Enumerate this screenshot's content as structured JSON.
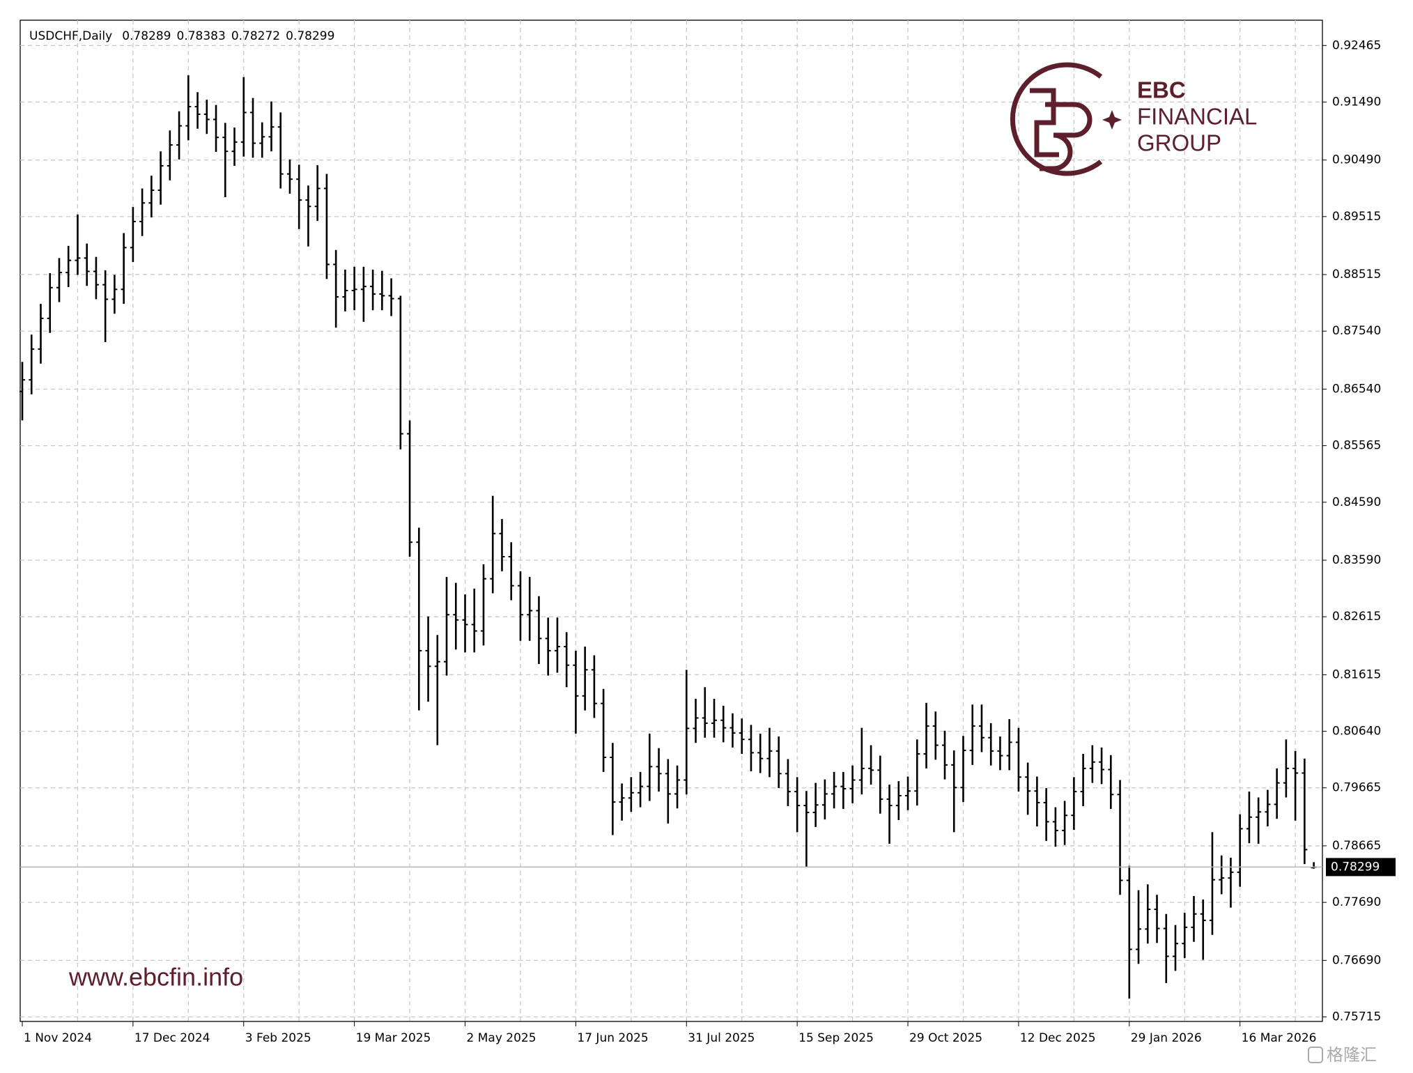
{
  "chart_data": {
    "type": "ohlc",
    "title": "USDCHF,Daily",
    "color": "#000000",
    "grid": true,
    "logo": [
      "EBC",
      "FINANCIAL",
      "GROUP"
    ],
    "website": "www.ebcfin.info",
    "watermark": "格隆汇",
    "categories": [
      "1 Nov 2024",
      null,
      null,
      null,
      null,
      null,
      null,
      null,
      null,
      null,
      null,
      null,
      "17 Dec 2024",
      null,
      null,
      null,
      null,
      null,
      null,
      null,
      null,
      null,
      null,
      null,
      "3 Feb 2025",
      null,
      null,
      null,
      null,
      null,
      null,
      null,
      null,
      null,
      null,
      null,
      "19 Mar 2025",
      null,
      null,
      null,
      null,
      null,
      null,
      null,
      null,
      null,
      null,
      null,
      "2 May 2025",
      null,
      null,
      null,
      null,
      null,
      null,
      null,
      null,
      null,
      null,
      null,
      "17 Jun 2025",
      null,
      null,
      null,
      null,
      null,
      null,
      null,
      null,
      null,
      null,
      null,
      "31 Jul 2025",
      null,
      null,
      null,
      null,
      null,
      null,
      null,
      null,
      null,
      null,
      null,
      "15 Sep 2025",
      null,
      null,
      null,
      null,
      null,
      null,
      null,
      null,
      null,
      null,
      null,
      "29 Oct 2025",
      null,
      null,
      null,
      null,
      null,
      null,
      null,
      null,
      null,
      null,
      null,
      "12 Dec 2025",
      null,
      null,
      null,
      null,
      null,
      null,
      null,
      null,
      null,
      null,
      null,
      "29 Jan 2026",
      null,
      null,
      null,
      null,
      null,
      null,
      null,
      null,
      null,
      null,
      null,
      "16 Mar 2026",
      null,
      null,
      null,
      null,
      null,
      null,
      null,
      null
    ],
    "open": [
      0.865,
      0.867,
      0.8723,
      0.8776,
      0.8829,
      0.8855,
      0.8876,
      0.888,
      0.8857,
      0.8834,
      0.8809,
      0.8826,
      0.8898,
      0.8943,
      0.8975,
      0.8997,
      0.9039,
      0.9075,
      0.9108,
      0.9141,
      0.9128,
      0.9119,
      0.9088,
      0.9064,
      0.908,
      0.9131,
      0.9078,
      0.9089,
      0.9106,
      0.9025,
      0.9016,
      0.898,
      0.8969,
      0.9,
      0.8869,
      0.8813,
      0.8824,
      0.8826,
      0.8831,
      0.8818,
      0.8815,
      0.881,
      0.8577,
      0.839,
      0.8203,
      0.8176,
      0.8184,
      0.8265,
      0.8256,
      0.8248,
      0.8237,
      0.8327,
      0.8405,
      0.8365,
      0.8315,
      0.8265,
      0.8272,
      0.8224,
      0.8203,
      0.821,
      0.8178,
      0.8125,
      0.817,
      0.8112,
      0.8019,
      0.7942,
      0.7949,
      0.7958,
      0.7969,
      0.8003,
      0.7991,
      0.7956,
      0.798,
      0.8069,
      0.8087,
      0.8078,
      0.8083,
      0.807,
      0.8061,
      0.805,
      0.8027,
      0.8017,
      0.803,
      0.7991,
      0.796,
      0.7936,
      0.7924,
      0.7937,
      0.7956,
      0.7969,
      0.7965,
      0.798,
      0.8,
      0.7997,
      0.7947,
      0.7936,
      0.7953,
      0.7961,
      0.8025,
      0.8073,
      0.804,
      0.8006,
      0.7967,
      0.8031,
      0.8073,
      0.8053,
      0.803,
      0.8022,
      0.8045,
      0.7985,
      0.7961,
      0.7941,
      0.7908,
      0.7893,
      0.7919,
      0.796,
      0.8,
      0.8011,
      0.7998,
      0.7955,
      0.7807,
      0.7688,
      0.7723,
      0.7757,
      0.7724,
      0.7676,
      0.7698,
      0.7726,
      0.7749,
      0.7738,
      0.7808,
      0.7811,
      0.7821,
      0.7896,
      0.7916,
      0.7925,
      0.7938,
      0.7975,
      0.8,
      0.7992,
      0.78289
    ],
    "high": [
      0.8701,
      0.8748,
      0.8801,
      0.8854,
      0.888,
      0.8901,
      0.8955,
      0.8905,
      0.8882,
      0.8859,
      0.8851,
      0.8923,
      0.8968,
      0.9,
      0.9022,
      0.9064,
      0.91,
      0.9133,
      0.9195,
      0.9166,
      0.9153,
      0.9144,
      0.9113,
      0.9105,
      0.9192,
      0.9156,
      0.9114,
      0.915,
      0.9131,
      0.905,
      0.9041,
      0.9005,
      0.904,
      0.9025,
      0.8894,
      0.886,
      0.8865,
      0.8865,
      0.886,
      0.8858,
      0.8845,
      0.8815,
      0.86,
      0.8415,
      0.8262,
      0.823,
      0.833,
      0.832,
      0.83,
      0.831,
      0.8352,
      0.847,
      0.843,
      0.839,
      0.834,
      0.833,
      0.8297,
      0.826,
      0.826,
      0.8235,
      0.8203,
      0.821,
      0.8195,
      0.8137,
      0.8044,
      0.7974,
      0.7985,
      0.7994,
      0.806,
      0.8035,
      0.8016,
      0.8005,
      0.817,
      0.812,
      0.814,
      0.812,
      0.8108,
      0.8095,
      0.8086,
      0.8075,
      0.806,
      0.807,
      0.8055,
      0.8016,
      0.7985,
      0.7961,
      0.7975,
      0.7981,
      0.7994,
      0.7994,
      0.8005,
      0.807,
      0.804,
      0.8022,
      0.7972,
      0.7978,
      0.7986,
      0.805,
      0.8113,
      0.8098,
      0.8065,
      0.8031,
      0.8056,
      0.811,
      0.811,
      0.8078,
      0.8055,
      0.8085,
      0.807,
      0.801,
      0.7986,
      0.7966,
      0.7933,
      0.7944,
      0.7985,
      0.8025,
      0.804,
      0.8036,
      0.8023,
      0.798,
      0.7832,
      0.779,
      0.78,
      0.7782,
      0.7749,
      0.773,
      0.7751,
      0.778,
      0.7774,
      0.789,
      0.785,
      0.7846,
      0.7921,
      0.796,
      0.795,
      0.7963,
      0.8,
      0.805,
      0.803,
      0.8017,
      0.78383
    ],
    "low": [
      0.86,
      0.8645,
      0.8698,
      0.8751,
      0.8804,
      0.883,
      0.8851,
      0.8832,
      0.8809,
      0.8735,
      0.8784,
      0.8801,
      0.8873,
      0.8918,
      0.895,
      0.8972,
      0.9014,
      0.905,
      0.9083,
      0.9103,
      0.9094,
      0.9063,
      0.8985,
      0.9039,
      0.9055,
      0.9053,
      0.9053,
      0.9064,
      0.9,
      0.8991,
      0.893,
      0.89,
      0.8944,
      0.8844,
      0.876,
      0.8788,
      0.879,
      0.877,
      0.879,
      0.879,
      0.878,
      0.855,
      0.8365,
      0.81,
      0.8115,
      0.804,
      0.816,
      0.8205,
      0.82,
      0.82,
      0.8212,
      0.8302,
      0.834,
      0.829,
      0.822,
      0.822,
      0.818,
      0.816,
      0.8165,
      0.814,
      0.806,
      0.81,
      0.8087,
      0.7994,
      0.7885,
      0.791,
      0.7925,
      0.7933,
      0.7944,
      0.796,
      0.7905,
      0.7931,
      0.7955,
      0.8044,
      0.8053,
      0.8053,
      0.8045,
      0.8036,
      0.8025,
      0.7995,
      0.7992,
      0.7985,
      0.7966,
      0.7935,
      0.789,
      0.783,
      0.7899,
      0.7912,
      0.7931,
      0.793,
      0.794,
      0.7955,
      0.7972,
      0.7922,
      0.787,
      0.7911,
      0.7928,
      0.7936,
      0.8,
      0.8015,
      0.7981,
      0.789,
      0.7942,
      0.8006,
      0.8028,
      0.8005,
      0.7997,
      0.7997,
      0.796,
      0.792,
      0.79,
      0.7875,
      0.7865,
      0.7868,
      0.7894,
      0.7935,
      0.7975,
      0.7973,
      0.793,
      0.7782,
      0.7603,
      0.7663,
      0.7698,
      0.7699,
      0.763,
      0.7651,
      0.7673,
      0.7701,
      0.767,
      0.7713,
      0.7783,
      0.776,
      0.7796,
      0.7871,
      0.787,
      0.79,
      0.7913,
      0.795,
      0.791,
      0.7835,
      0.78272
    ],
    "close": [
      0.867,
      0.8723,
      0.8776,
      0.8829,
      0.8855,
      0.8876,
      0.888,
      0.8857,
      0.8834,
      0.8809,
      0.8826,
      0.8898,
      0.8943,
      0.8975,
      0.8997,
      0.9039,
      0.9075,
      0.9108,
      0.9141,
      0.9128,
      0.9119,
      0.9088,
      0.9064,
      0.908,
      0.9131,
      0.9078,
      0.9089,
      0.9106,
      0.9025,
      0.9016,
      0.898,
      0.8969,
      0.9,
      0.8869,
      0.8813,
      0.8824,
      0.8826,
      0.8831,
      0.8818,
      0.8815,
      0.881,
      0.8577,
      0.839,
      0.8203,
      0.8176,
      0.8184,
      0.8265,
      0.8256,
      0.8248,
      0.8237,
      0.8327,
      0.8405,
      0.8365,
      0.8315,
      0.8265,
      0.8272,
      0.8224,
      0.8203,
      0.821,
      0.8178,
      0.8125,
      0.817,
      0.8112,
      0.8019,
      0.7942,
      0.7949,
      0.7958,
      0.7969,
      0.8003,
      0.7991,
      0.7956,
      0.798,
      0.8069,
      0.8087,
      0.8078,
      0.8083,
      0.807,
      0.8061,
      0.805,
      0.8027,
      0.8017,
      0.803,
      0.7991,
      0.796,
      0.7936,
      0.7924,
      0.7937,
      0.7956,
      0.7969,
      0.7965,
      0.798,
      0.8,
      0.7997,
      0.7947,
      0.7936,
      0.7953,
      0.7961,
      0.8025,
      0.8073,
      0.804,
      0.8006,
      0.7967,
      0.8031,
      0.8073,
      0.8053,
      0.803,
      0.8022,
      0.8045,
      0.7985,
      0.7961,
      0.7941,
      0.7908,
      0.7893,
      0.7919,
      0.796,
      0.8,
      0.8011,
      0.7998,
      0.7955,
      0.7807,
      0.7688,
      0.7723,
      0.7757,
      0.7724,
      0.7676,
      0.7698,
      0.7726,
      0.7749,
      0.7738,
      0.7808,
      0.7811,
      0.7821,
      0.7896,
      0.7916,
      0.7925,
      0.7938,
      0.7975,
      0.8,
      0.7992,
      0.786,
      0.78299
    ],
    "ylim": [
      0.75637,
      0.92901
    ],
    "yticks": [
      0.92465,
      {
        "value": 0.9149,
        "label": "0.91490"
      },
      {
        "value": 0.9049,
        "label": "0.90490"
      },
      0.89515,
      0.88515,
      {
        "value": 0.8754,
        "label": "0.87540"
      },
      {
        "value": 0.8654,
        "label": "0.86540"
      },
      0.85565,
      {
        "value": 0.8459,
        "label": "0.84590"
      },
      {
        "value": 0.8359,
        "label": "0.83590"
      },
      0.82615,
      0.81615,
      {
        "value": 0.8064,
        "label": "0.80640"
      },
      0.79665,
      0.78665,
      {
        "value": 0.7769,
        "label": "0.77690"
      },
      {
        "value": 0.7669,
        "label": "0.76690"
      },
      0.75715
    ]
  }
}
